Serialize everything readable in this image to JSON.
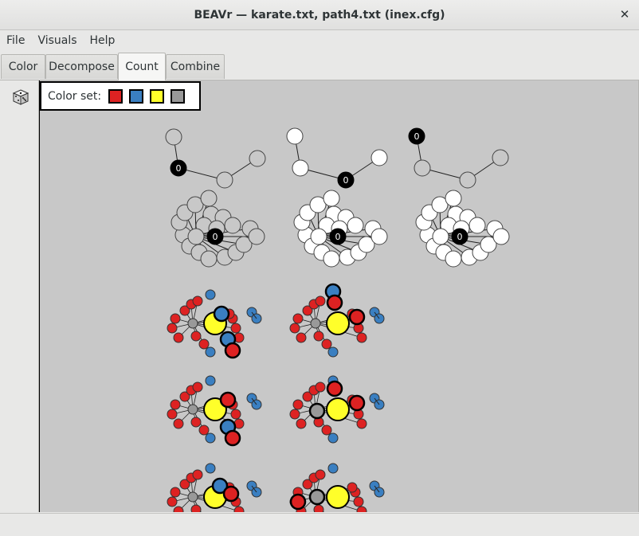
{
  "window": {
    "title": "BEAVr — karate.txt, path4.txt (inex.cfg)",
    "close_glyph": "✕"
  },
  "menu": {
    "items": [
      "File",
      "Visuals",
      "Help"
    ]
  },
  "tabs": {
    "items": [
      "Color",
      "Decompose",
      "Count",
      "Combine"
    ],
    "active": "Count"
  },
  "toolbar": {
    "icon": "dice-icon"
  },
  "color_set": {
    "label": "Color set:",
    "colors": [
      "#dd2222",
      "#3a7fc1",
      "#ffff2a",
      "#999999"
    ]
  },
  "graph_panels": {
    "path_label": "0",
    "colors": {
      "red": "#dd2222",
      "blue": "#3a7fc1",
      "yellow": "#ffff2a",
      "gray": "#999999",
      "white": "#ffffff",
      "black": "#000000",
      "light": "#c8c8c8"
    }
  }
}
